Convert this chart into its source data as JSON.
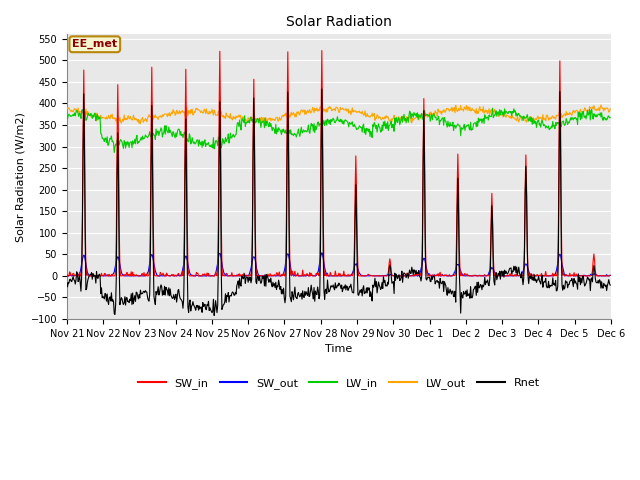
{
  "title": "Solar Radiation",
  "ylabel": "Solar Radiation (W/m2)",
  "xlabel": "Time",
  "ylim": [
    -100,
    560
  ],
  "yticks": [
    -100,
    -50,
    0,
    50,
    100,
    150,
    200,
    250,
    300,
    350,
    400,
    450,
    500,
    550
  ],
  "annotation": "EE_met",
  "fig_bg": "#ffffff",
  "plot_bg": "#e8e8e8",
  "series": {
    "SW_in": {
      "color": "#ff0000",
      "lw": 0.8
    },
    "SW_out": {
      "color": "#0000ff",
      "lw": 0.8
    },
    "LW_in": {
      "color": "#00cc00",
      "lw": 0.8
    },
    "LW_out": {
      "color": "#ffa500",
      "lw": 0.8
    },
    "Rnet": {
      "color": "#000000",
      "lw": 0.8
    }
  },
  "xtick_labels": [
    "Nov 21",
    "Nov 22",
    "Nov 23",
    "Nov 24",
    "Nov 25",
    "Nov 26",
    "Nov 27",
    "Nov 28",
    "Nov 29",
    "Nov 30",
    "Dec 1",
    "Dec 2",
    "Dec 3",
    "Dec 4",
    "Dec 5",
    "Dec 6"
  ],
  "n_days": 16,
  "sw_in_peaks": [
    480,
    440,
    495,
    470,
    525,
    460,
    520,
    520,
    280,
    40,
    410,
    285,
    190,
    285,
    505,
    50
  ],
  "lw_in_base": 360,
  "lw_out_base": 375,
  "title_fontsize": 10,
  "label_fontsize": 8,
  "tick_fontsize": 7,
  "legend_fontsize": 8
}
